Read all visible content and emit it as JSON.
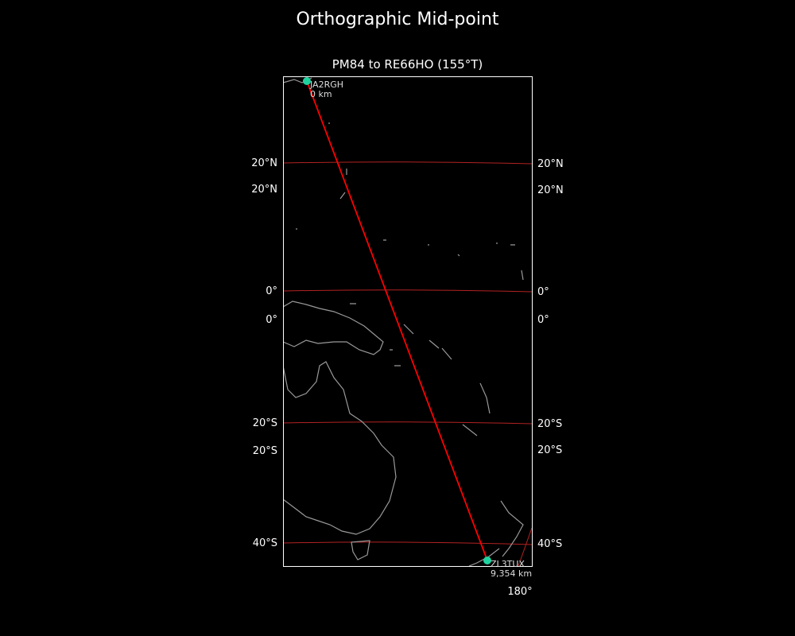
{
  "title": "Orthographic Mid-point",
  "subtitle": "PM84 to RE66HO (155°T)",
  "colors": {
    "background": "#000000",
    "path": "#ff0000",
    "graticule": "#b22222",
    "coastline": "#999999",
    "station": "#1fd3a0"
  },
  "stations": [
    {
      "call": "JA2RGH",
      "distance": "0 km"
    },
    {
      "call": "ZL3TUX",
      "distance": "9,354 km"
    }
  ],
  "lat_labels_left": [
    "20°N",
    "20°N",
    "0°",
    "0°",
    "20°S",
    "20°S",
    "40°S"
  ],
  "lat_labels_right": [
    "20°N",
    "20°N",
    "0°",
    "0°",
    "20°S",
    "20°S",
    "40°S"
  ],
  "lon_labels": [
    "180°"
  ]
}
